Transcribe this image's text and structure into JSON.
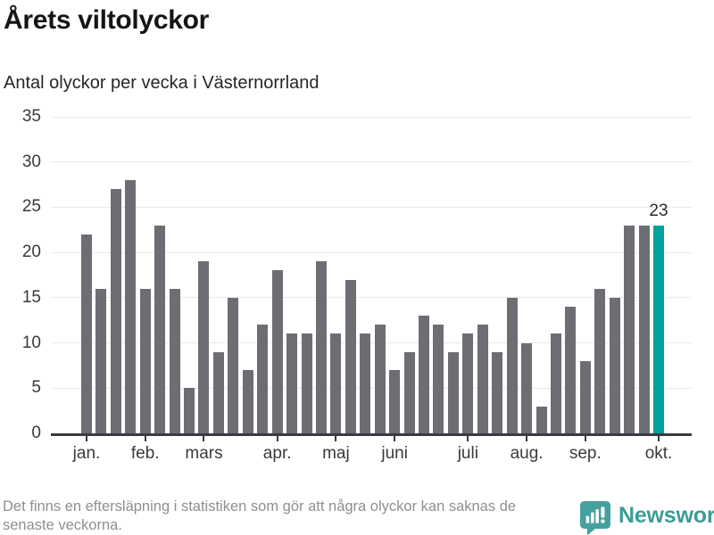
{
  "header": {
    "title": "Årets viltolyckor",
    "subtitle": "Antal olyckor per vecka i Västernorrland"
  },
  "chart_data": {
    "type": "bar",
    "title": "Årets viltolyckor",
    "subtitle": "Antal olyckor per vecka i Västernorrland",
    "unit": "olyckor per vecka",
    "values": [
      22,
      16,
      27,
      28,
      16,
      23,
      16,
      5,
      19,
      9,
      15,
      7,
      12,
      18,
      11,
      11,
      19,
      11,
      17,
      11,
      12,
      7,
      9,
      13,
      12,
      9,
      11,
      12,
      9,
      15,
      10,
      3,
      11,
      14,
      8,
      16,
      15,
      23,
      23,
      23
    ],
    "highlight_index": 39,
    "annotation": {
      "index": 39,
      "text": "23"
    },
    "months": [
      {
        "label": "jan.",
        "index": 0
      },
      {
        "label": "feb.",
        "index": 4
      },
      {
        "label": "mars",
        "index": 8
      },
      {
        "label": "apr.",
        "index": 13
      },
      {
        "label": "maj",
        "index": 17
      },
      {
        "label": "juni",
        "index": 21
      },
      {
        "label": "juli",
        "index": 26
      },
      {
        "label": "aug.",
        "index": 30
      },
      {
        "label": "sep.",
        "index": 34
      },
      {
        "label": "okt.",
        "index": 39
      }
    ],
    "yticks": [
      0,
      5,
      10,
      15,
      20,
      25,
      30,
      35
    ],
    "ylim": [
      0,
      35
    ],
    "grid": true,
    "legend": "none",
    "colors": {
      "bar": "#6d6d74",
      "highlight": "#00a29b"
    }
  },
  "footer": {
    "note": "Det finns en eftersläpning i statistiken som gör att några olyckor kan saknas de senaste veckorna.",
    "brand": "Newsworthy",
    "brand_color": "#3d9b97",
    "logo_color": "#45a19d"
  }
}
